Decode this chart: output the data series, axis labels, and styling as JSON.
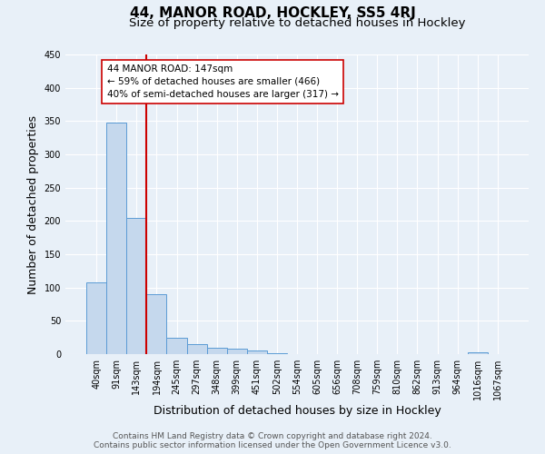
{
  "title": "44, MANOR ROAD, HOCKLEY, SS5 4RJ",
  "subtitle": "Size of property relative to detached houses in Hockley",
  "xlabel": "Distribution of detached houses by size in Hockley",
  "ylabel": "Number of detached properties",
  "footer_line1": "Contains HM Land Registry data © Crown copyright and database right 2024.",
  "footer_line2": "Contains public sector information licensed under the Open Government Licence v3.0.",
  "bin_labels": [
    "40sqm",
    "91sqm",
    "143sqm",
    "194sqm",
    "245sqm",
    "297sqm",
    "348sqm",
    "399sqm",
    "451sqm",
    "502sqm",
    "554sqm",
    "605sqm",
    "656sqm",
    "708sqm",
    "759sqm",
    "810sqm",
    "862sqm",
    "913sqm",
    "964sqm",
    "1016sqm",
    "1067sqm"
  ],
  "bar_values": [
    108,
    348,
    204,
    90,
    24,
    15,
    9,
    8,
    5,
    2,
    0,
    0,
    0,
    0,
    0,
    0,
    0,
    0,
    0,
    3,
    0
  ],
  "bar_color": "#c5d8ed",
  "bar_edge_color": "#5b9bd5",
  "vline_color": "#cc0000",
  "annotation_text": "44 MANOR ROAD: 147sqm\n← 59% of detached houses are smaller (466)\n40% of semi-detached houses are larger (317) →",
  "annotation_box_color": "#ffffff",
  "annotation_box_edge": "#cc0000",
  "ylim": [
    0,
    450
  ],
  "yticks": [
    0,
    50,
    100,
    150,
    200,
    250,
    300,
    350,
    400,
    450
  ],
  "bg_color": "#e8f0f8",
  "axes_bg_color": "#e8f0f8",
  "grid_color": "#ffffff",
  "title_fontsize": 11,
  "subtitle_fontsize": 9.5,
  "label_fontsize": 9,
  "tick_fontsize": 7,
  "footer_fontsize": 6.5,
  "annot_fontsize": 7.5
}
